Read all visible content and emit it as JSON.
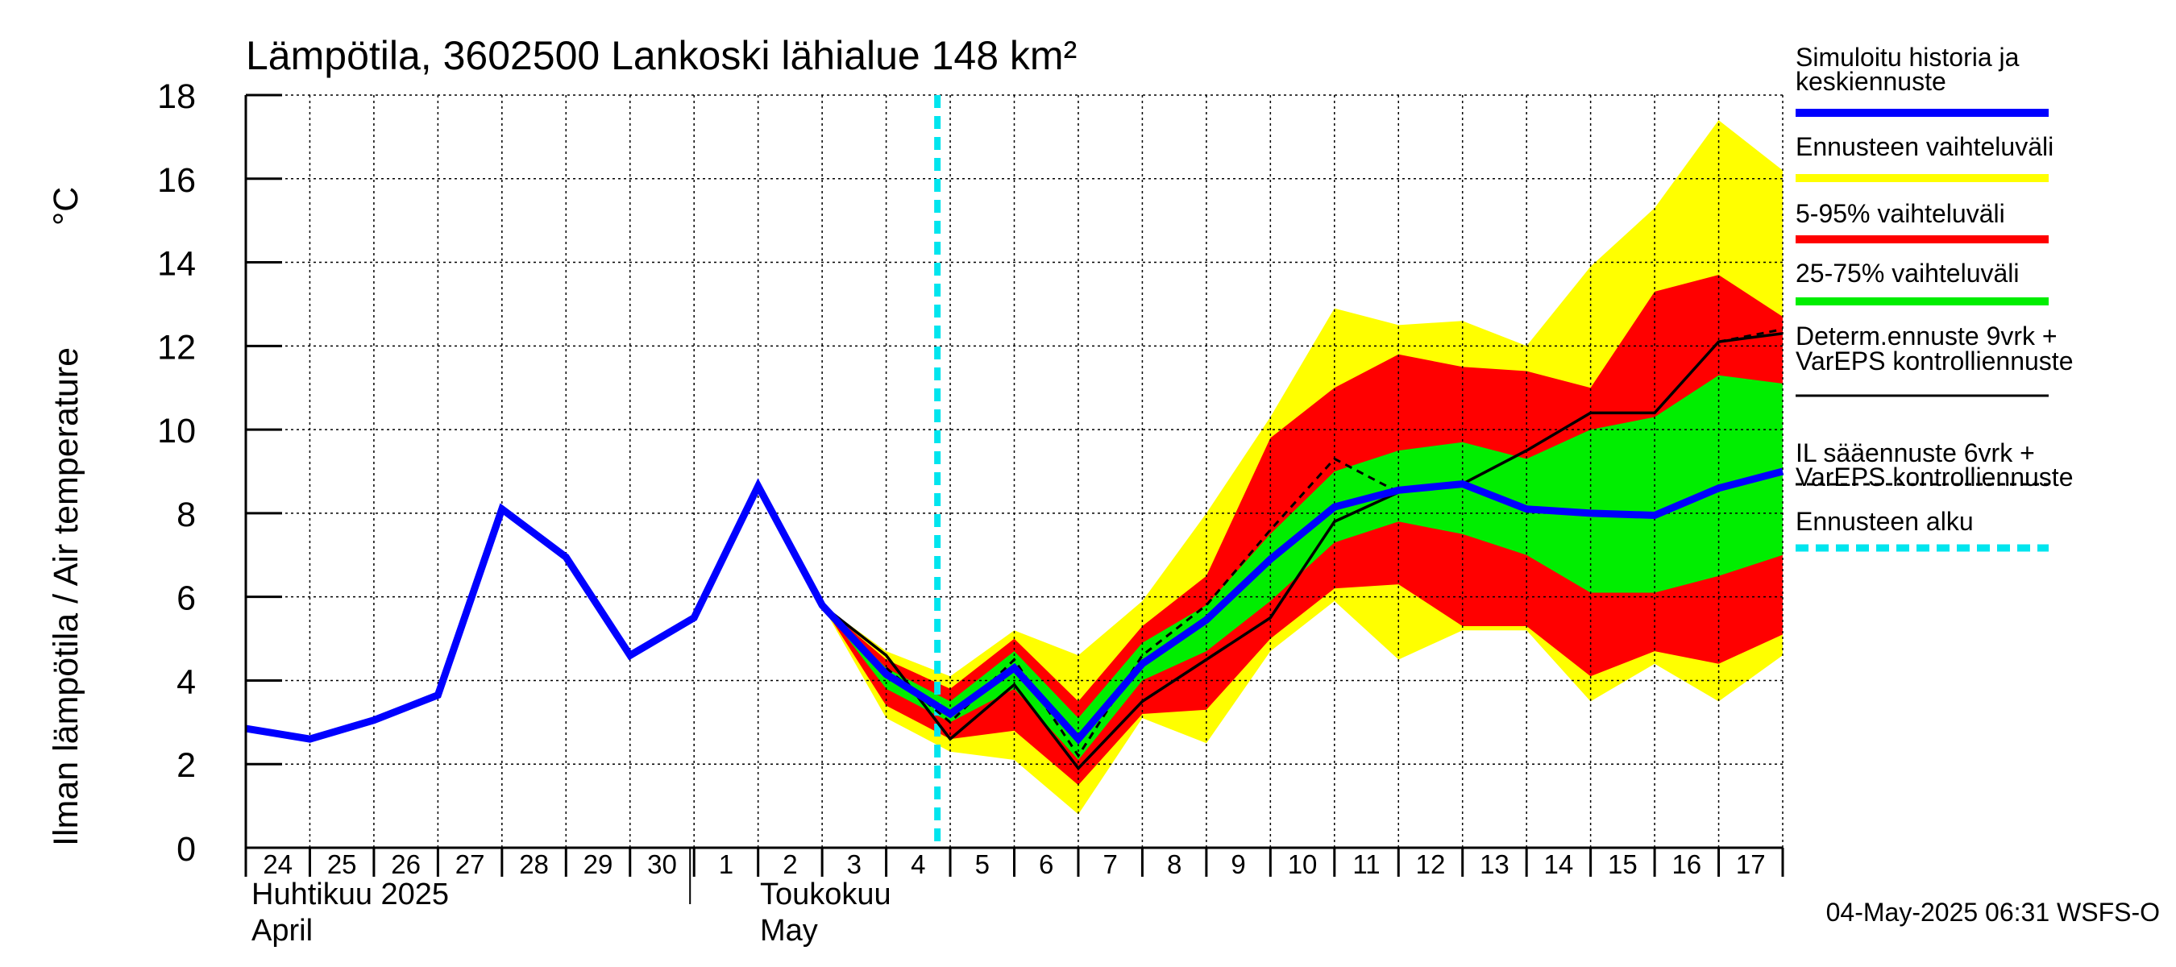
{
  "chart_data": {
    "type": "area",
    "title": "Lämpötila, 3602500 Lankoski lähialue 148 km²",
    "ylabel_fi": "Ilman lämpötila / Air temperature",
    "ylabel_unit": "°C",
    "ylim": [
      0,
      18
    ],
    "yticks": [
      "0",
      "2",
      "4",
      "6",
      "8",
      "10",
      "12",
      "14",
      "16",
      "18"
    ],
    "x_start": "2025-04-24",
    "x_days": 24,
    "day_labels": [
      "24",
      "25",
      "26",
      "27",
      "28",
      "29",
      "30",
      "1",
      "2",
      "3",
      "4",
      "5",
      "6",
      "7",
      "8",
      "9",
      "10",
      "11",
      "12",
      "13",
      "14",
      "15",
      "16",
      "17"
    ],
    "month_labels": {
      "april_fi": "Huhtikuu  2025",
      "april_en": "April",
      "may_fi": "Toukokuu",
      "may_en": "May"
    },
    "forecast_start": 10.8,
    "series": {
      "history_and_mean": {
        "x": [
          0,
          1,
          2,
          3,
          4,
          5,
          6,
          7,
          8,
          9,
          10,
          11,
          12,
          13,
          14,
          15,
          16,
          17,
          18,
          19,
          20,
          21,
          22,
          23,
          24
        ],
        "y": [
          2.85,
          2.6,
          3.05,
          3.65,
          8.1,
          6.95,
          4.6,
          5.5,
          8.65,
          5.8,
          4.15,
          3.2,
          4.3,
          2.6,
          4.4,
          5.45,
          6.9,
          8.15,
          8.55,
          8.7,
          8.1,
          8.0,
          7.95,
          8.6,
          9.0
        ]
      },
      "ennusteen_vaihteluvali": {
        "x": [
          9,
          10,
          11,
          12,
          13,
          14,
          15,
          16,
          17,
          18,
          19,
          20,
          21,
          22,
          23,
          24
        ],
        "low": [
          5.8,
          3.1,
          2.3,
          2.1,
          0.8,
          3.1,
          2.5,
          4.7,
          5.9,
          4.5,
          5.2,
          5.2,
          3.5,
          4.4,
          3.5,
          4.6
        ],
        "high": [
          5.8,
          4.7,
          4.1,
          5.2,
          4.6,
          5.9,
          8.0,
          10.3,
          12.9,
          12.5,
          12.6,
          12.0,
          13.9,
          15.3,
          17.4,
          16.2
        ]
      },
      "vaihteluvali_5_95": {
        "x": [
          9,
          10,
          11,
          12,
          13,
          14,
          15,
          16,
          17,
          18,
          19,
          20,
          21,
          22,
          23,
          24
        ],
        "low": [
          5.8,
          3.4,
          2.6,
          2.8,
          1.5,
          3.2,
          3.3,
          5.0,
          6.2,
          6.3,
          5.3,
          5.3,
          4.1,
          4.7,
          4.4,
          5.1
        ],
        "high": [
          5.8,
          4.5,
          3.8,
          5.0,
          3.5,
          5.3,
          6.5,
          9.8,
          11.0,
          11.8,
          11.5,
          11.4,
          11.0,
          13.3,
          13.7,
          12.7
        ]
      },
      "vaihteluvali_25_75": {
        "x": [
          9,
          10,
          11,
          12,
          13,
          14,
          15,
          16,
          17,
          18,
          19,
          20,
          21,
          22,
          23,
          24
        ],
        "low": [
          5.8,
          3.8,
          3.0,
          3.8,
          2.1,
          4.0,
          4.7,
          5.9,
          7.3,
          7.8,
          7.5,
          7.0,
          6.1,
          6.1,
          6.5,
          7.0
        ],
        "high": [
          5.8,
          4.3,
          3.5,
          4.7,
          3.1,
          4.9,
          5.8,
          7.5,
          9.0,
          9.5,
          9.7,
          9.3,
          10.0,
          10.3,
          11.3,
          11.1
        ]
      },
      "determ_9vrk": {
        "x": [
          8,
          9,
          10,
          11,
          12,
          13,
          14,
          15,
          16,
          17,
          18,
          19,
          20,
          21,
          22,
          23,
          24
        ],
        "y": [
          8.7,
          5.8,
          4.6,
          2.6,
          3.9,
          1.9,
          3.5,
          4.5,
          5.5,
          7.8,
          8.5,
          8.7,
          9.5,
          10.4,
          10.4,
          12.1,
          12.3
        ]
      },
      "il_saaennuste_6vrk": {
        "x": [
          10,
          11,
          12,
          13,
          14,
          15,
          16,
          17,
          18
        ],
        "y": [
          4.3,
          3.0,
          4.5,
          2.2,
          4.6,
          5.8,
          7.6,
          9.3,
          8.5
        ]
      },
      "determ_tail": {
        "x": [
          23,
          24
        ],
        "y": [
          12.1,
          12.4
        ]
      }
    },
    "legend": [
      {
        "label": "Simuloitu historia ja\nkeskiennuste",
        "color": "#0000ff",
        "style": "thick"
      },
      {
        "label": "Ennusteen vaihteluväli",
        "color": "#ffff00",
        "style": "thick"
      },
      {
        "label": "5-95% vaihteluväli",
        "color": "#ff0000",
        "style": "thick"
      },
      {
        "label": "25-75% vaihteluväli",
        "color": "#00ee00",
        "style": "thick"
      },
      {
        "label": "Determ.ennuste 9vrk +\nVarEPS kontrolliennuste",
        "color": "#000000",
        "style": "thin"
      },
      {
        "label": "IL sääennuste 6vrk  +\n  VarEPS kontrolliennuste",
        "color": "#000000",
        "style": "dashed"
      },
      {
        "label": "Ennusteen alku",
        "color": "#00e5ee",
        "style": "thickdash"
      }
    ],
    "footer": "04-May-2025 06:31 WSFS-O",
    "colors": {
      "mean": "#0000ff",
      "range_full": "#ffff00",
      "range_5_95": "#ff0000",
      "range_25_75": "#00ee00",
      "forecast_start": "#00e5ee",
      "grid": "#000000"
    }
  }
}
